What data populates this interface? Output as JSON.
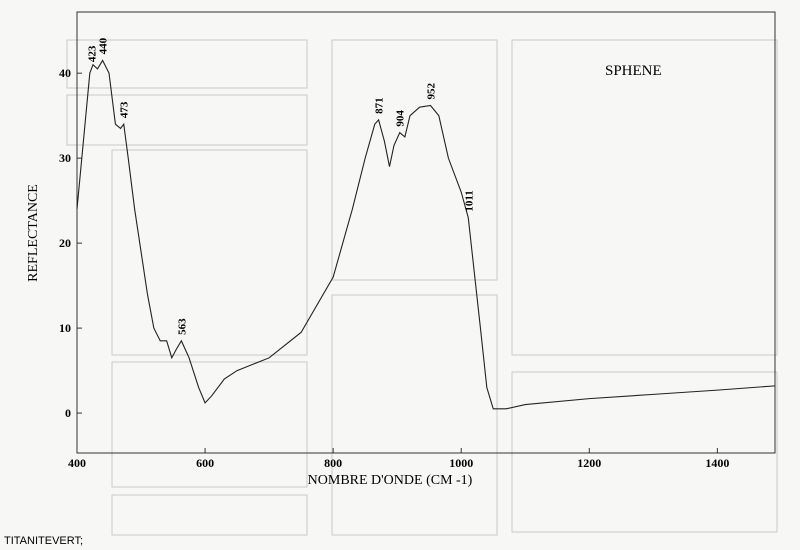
{
  "chart_data": {
    "type": "line",
    "title": "SPHENE",
    "x_label": "NOMBRE D'ONDE (CM -1)",
    "y_label": "REFLECTANCE",
    "x": [
      400,
      410,
      420,
      425,
      432,
      440,
      450,
      460,
      468,
      473,
      480,
      490,
      500,
      510,
      520,
      530,
      540,
      548,
      555,
      563,
      575,
      590,
      600,
      610,
      630,
      650,
      700,
      750,
      800,
      830,
      850,
      865,
      871,
      880,
      888,
      895,
      904,
      912,
      920,
      935,
      952,
      965,
      980,
      1000,
      1011,
      1030,
      1040,
      1050,
      1070,
      1100,
      1200,
      1300,
      1400,
      1490
    ],
    "series": [
      {
        "color": "#222222",
        "values": [
          24,
          32,
          40,
          41,
          40.5,
          41.5,
          40,
          34,
          33.5,
          34,
          30,
          24,
          19,
          14,
          10,
          8.5,
          8.5,
          6.5,
          7.5,
          8.5,
          6.5,
          3,
          1.2,
          2,
          4,
          5,
          6.5,
          9.5,
          16,
          24,
          30,
          34,
          34.5,
          32,
          29,
          31.5,
          33,
          32.5,
          35,
          36,
          36.2,
          35,
          30,
          26,
          23,
          10,
          3,
          0.5,
          0.5,
          1,
          1.7,
          2.2,
          2.7,
          3.2
        ]
      }
    ],
    "peak_labels": [
      423,
      440,
      473,
      563,
      871,
      904,
      952,
      1011
    ],
    "xlim": [
      400,
      1490
    ],
    "ylim": [
      -4.7,
      47.2
    ],
    "xticks": [
      400,
      600,
      800,
      1000,
      1200,
      1400
    ],
    "yticks": [
      0,
      10,
      20,
      30,
      40
    ],
    "grid": false
  },
  "caption": "TITANITEVERT;"
}
